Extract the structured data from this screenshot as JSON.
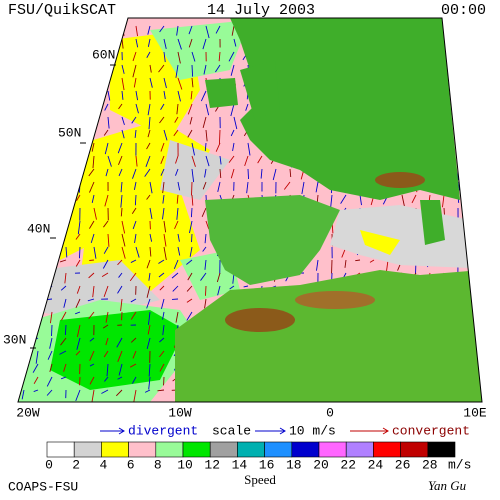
{
  "header": {
    "title": "FSU/QuikSCAT",
    "date": "14 July 2003",
    "time": "00:00"
  },
  "map": {
    "lat_labels": [
      "60N",
      "50N",
      "40N",
      "30N"
    ],
    "lon_labels": [
      "20W",
      "10W",
      "0",
      "10E"
    ]
  },
  "legend": {
    "divergent": "divergent",
    "scale": "scale",
    "scale_value": "10 m/s",
    "convergent": "convergent"
  },
  "colorbar": {
    "title": "Speed",
    "unit": "m/s",
    "ticks": [
      0,
      2,
      4,
      6,
      8,
      10,
      12,
      14,
      16,
      18,
      20,
      22,
      24,
      26,
      28
    ],
    "colors": [
      "#ffffff",
      "#d3d3d3",
      "#ffff00",
      "#ffc0cb",
      "#98fb98",
      "#00e600",
      "#a0a0a0",
      "#00b0b0",
      "#1e90ff",
      "#0000cd",
      "#ff66ff",
      "#b080ff",
      "#ff0000",
      "#c00000",
      "#000000"
    ]
  },
  "footer": {
    "left": "COAPS-FSU",
    "right": "Yan Gu"
  }
}
